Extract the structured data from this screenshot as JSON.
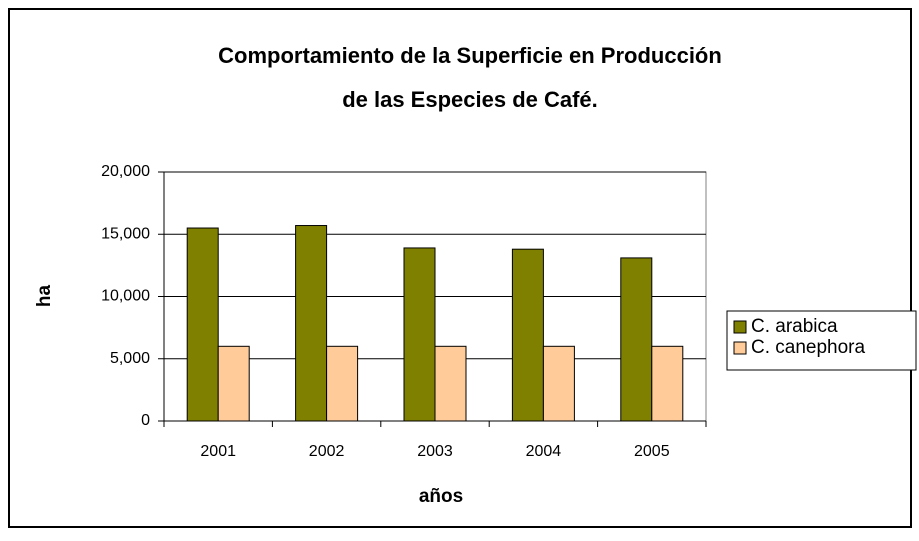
{
  "chart_data": {
    "type": "bar",
    "title": [
      "Comportamiento de la Superficie en Producción",
      "de las Especies de Café."
    ],
    "xlabel": "años",
    "ylabel": "ha",
    "categories": [
      "2001",
      "2002",
      "2003",
      "2004",
      "2005"
    ],
    "series": [
      {
        "name": "C. arabica",
        "color": "#808000",
        "values": [
          15500,
          15700,
          13900,
          13800,
          13100
        ]
      },
      {
        "name": "C. canephora",
        "color": "#ffcc99",
        "values": [
          6000,
          6000,
          6000,
          6000,
          6000
        ]
      }
    ],
    "ylim": [
      0,
      20000
    ],
    "yticks": [
      0,
      {
        "value": 5000,
        "label": "5,000"
      },
      {
        "value": 10000,
        "label": "10,000"
      },
      {
        "value": 15000,
        "label": "15,000"
      },
      {
        "value": 20000,
        "label": "20,000"
      }
    ],
    "grid": true,
    "legend": "right"
  }
}
